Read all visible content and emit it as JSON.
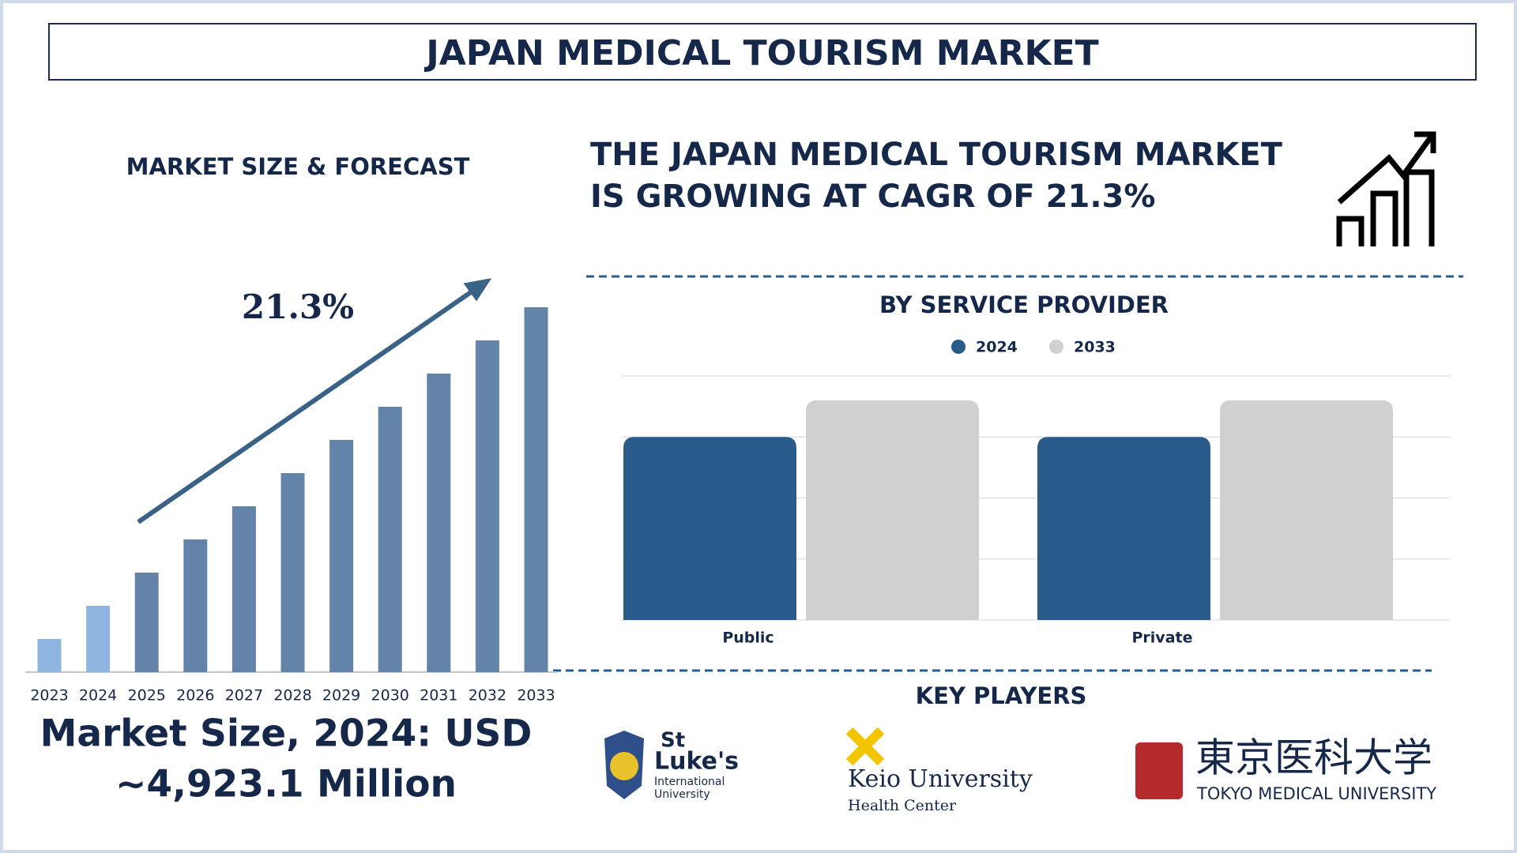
{
  "title": "JAPAN MEDICAL TOURISM MARKET",
  "headline": [
    "THE JAPAN MEDICAL TOURISM MARKET",
    "IS GROWING AT CAGR OF 21.3%"
  ],
  "market_size": [
    "Market Size, 2024: USD",
    "~4,923.1 Million"
  ],
  "chart_data": [
    {
      "type": "bar",
      "title": "MARKET SIZE & FORECAST",
      "annotation": "21.3%",
      "categories": [
        "2023",
        "2024",
        "2025",
        "2026",
        "2027",
        "2028",
        "2029",
        "2030",
        "2031",
        "2032",
        "2033"
      ],
      "values": [
        1,
        2,
        3,
        4,
        5,
        6,
        7,
        8,
        9,
        10,
        11
      ],
      "colors": [
        "#8db5e0",
        "#8db5e0",
        "#6384a8",
        "#6384a8",
        "#6384a8",
        "#6384a8",
        "#6384a8",
        "#6384a8",
        "#6384a8",
        "#6384a8",
        "#6384a8"
      ]
    },
    {
      "type": "grouped-bar",
      "title": "BY SERVICE PROVIDER",
      "categories": [
        "Public",
        "Private"
      ],
      "series": [
        {
          "name": "2024",
          "color": "#2a5c8b",
          "values": [
            3.0,
            3.0
          ]
        },
        {
          "name": "2033",
          "color": "#d0d0d0",
          "values": [
            3.6,
            3.6
          ]
        }
      ],
      "ylim": [
        0,
        4
      ],
      "yticks": [
        0,
        1,
        2,
        3,
        4
      ],
      "grid": true
    }
  ],
  "key_players": {
    "title": "KEY PLAYERS",
    "players": [
      {
        "name": [
          "St",
          "Luke's",
          "International",
          "University"
        ]
      },
      {
        "name": [
          "Keio University",
          "Health Center"
        ]
      },
      {
        "name": [
          "東京医科大学",
          "TOKYO MEDICAL UNIVERSITY"
        ]
      }
    ]
  }
}
